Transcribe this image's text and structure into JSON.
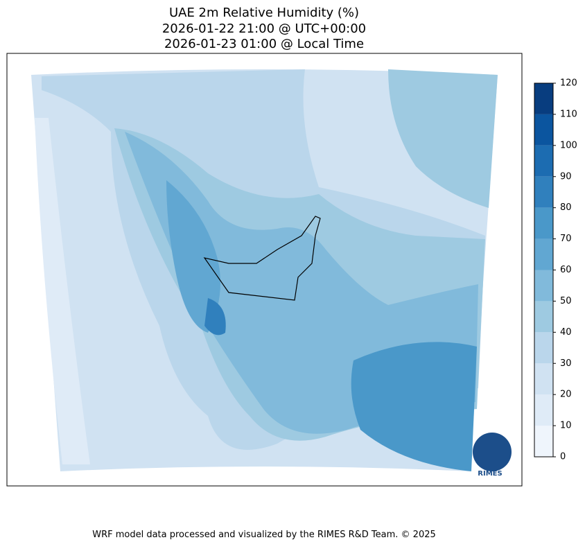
{
  "title": [
    "UAE 2m Relative Humidity (%)",
    "2026-01-22 21:00 @ UTC+00:00",
    "2026-01-23 01:00 @ Local Time"
  ],
  "colorbar": {
    "levels": [
      0,
      10,
      20,
      30,
      40,
      50,
      60,
      70,
      80,
      90,
      100,
      110,
      120
    ],
    "colors": [
      "#eff5fc",
      "#dfebf7",
      "#d0e2f2",
      "#bad6eb",
      "#9ecae1",
      "#81badb",
      "#61a7d2",
      "#4a98c9",
      "#3080bd",
      "#1c6cb1",
      "#0b559f",
      "#083d7f"
    ]
  },
  "logo": "RIMES",
  "footer": "WRF model data processed and visualized by the RIMES R&D Team. © 2025"
}
